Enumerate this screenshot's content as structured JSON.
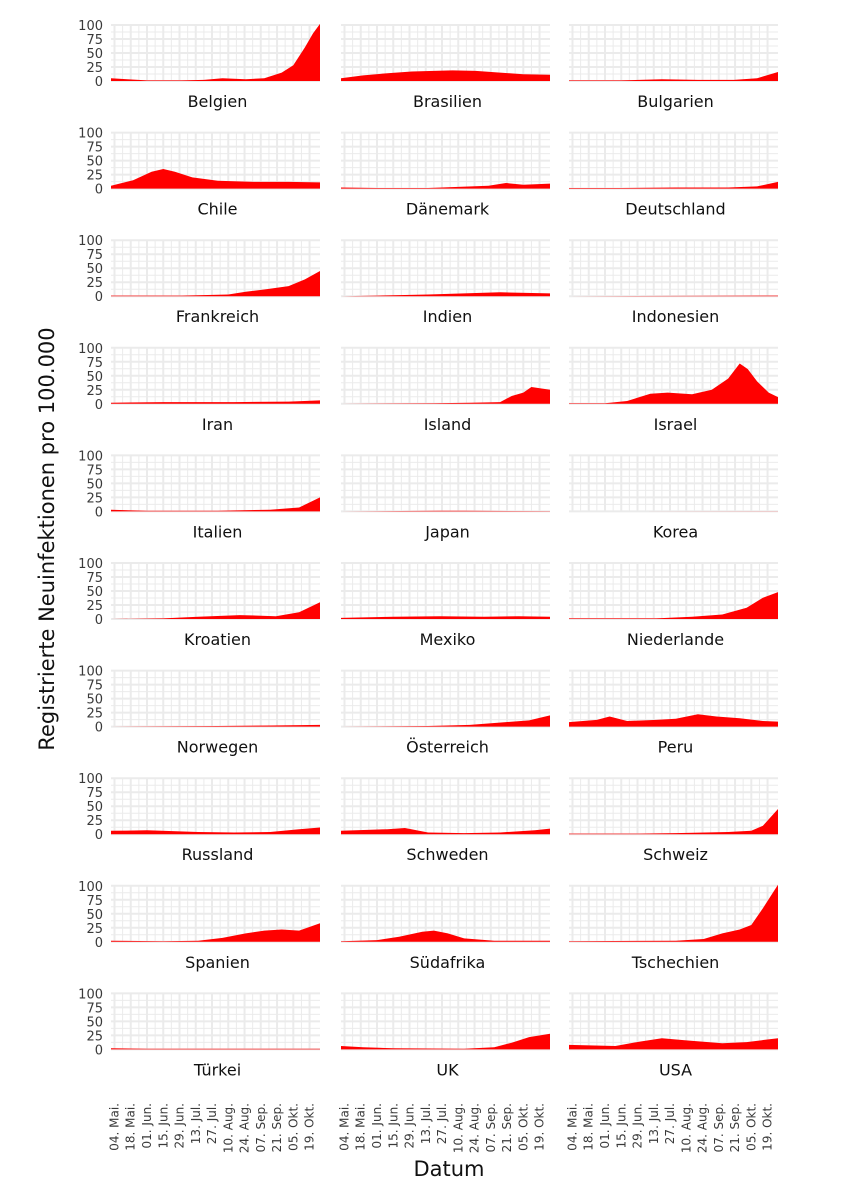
{
  "chart_data": {
    "type": "area",
    "xlabel": "Datum",
    "ylabel": "Registrierte Neuinfektionen pro 100.000",
    "ylim": [
      0,
      100
    ],
    "y_ticks": [
      0,
      25,
      50,
      75,
      100
    ],
    "x_range": [
      "2020-05-01",
      "2020-10-28"
    ],
    "x_ticks": [
      {
        "date": "2020-05-04",
        "label": "04. Mai."
      },
      {
        "date": "2020-05-18",
        "label": "18. Mai."
      },
      {
        "date": "2020-06-01",
        "label": "01. Jun."
      },
      {
        "date": "2020-06-15",
        "label": "15. Jun."
      },
      {
        "date": "2020-06-29",
        "label": "29. Jun."
      },
      {
        "date": "2020-07-13",
        "label": "13. Jul."
      },
      {
        "date": "2020-07-27",
        "label": "27. Jul."
      },
      {
        "date": "2020-08-10",
        "label": "10. Aug."
      },
      {
        "date": "2020-08-24",
        "label": "24. Aug."
      },
      {
        "date": "2020-09-07",
        "label": "07. Sep."
      },
      {
        "date": "2020-09-21",
        "label": "21. Sep."
      },
      {
        "date": "2020-10-05",
        "label": "05. Okt."
      },
      {
        "date": "2020-10-19",
        "label": "19. Okt."
      }
    ],
    "grid": true,
    "fill_color": "#ff0000",
    "grid_color": "#ebebeb",
    "panels": [
      {
        "name": "Belgien",
        "series": [
          [
            "2020-05-01",
            5
          ],
          [
            "2020-05-15",
            3
          ],
          [
            "2020-06-01",
            1
          ],
          [
            "2020-07-01",
            1
          ],
          [
            "2020-07-20",
            2
          ],
          [
            "2020-08-05",
            5
          ],
          [
            "2020-08-25",
            3
          ],
          [
            "2020-09-10",
            5
          ],
          [
            "2020-09-25",
            15
          ],
          [
            "2020-10-05",
            28
          ],
          [
            "2020-10-15",
            60
          ],
          [
            "2020-10-22",
            85
          ],
          [
            "2020-10-28",
            102
          ]
        ]
      },
      {
        "name": "Brasilien",
        "series": [
          [
            "2020-05-01",
            5
          ],
          [
            "2020-05-20",
            10
          ],
          [
            "2020-06-10",
            14
          ],
          [
            "2020-07-01",
            17
          ],
          [
            "2020-07-20",
            18
          ],
          [
            "2020-08-05",
            19
          ],
          [
            "2020-08-25",
            18
          ],
          [
            "2020-09-15",
            15
          ],
          [
            "2020-10-05",
            12
          ],
          [
            "2020-10-28",
            11
          ]
        ]
      },
      {
        "name": "Bulgarien",
        "series": [
          [
            "2020-05-01",
            1
          ],
          [
            "2020-06-15",
            1
          ],
          [
            "2020-07-20",
            3
          ],
          [
            "2020-08-20",
            2
          ],
          [
            "2020-09-20",
            2
          ],
          [
            "2020-10-10",
            5
          ],
          [
            "2020-10-28",
            16
          ]
        ]
      },
      {
        "name": "Chile",
        "series": [
          [
            "2020-05-01",
            5
          ],
          [
            "2020-05-20",
            15
          ],
          [
            "2020-06-05",
            30
          ],
          [
            "2020-06-15",
            35
          ],
          [
            "2020-06-25",
            30
          ],
          [
            "2020-07-10",
            20
          ],
          [
            "2020-08-01",
            14
          ],
          [
            "2020-09-01",
            12
          ],
          [
            "2020-10-01",
            12
          ],
          [
            "2020-10-28",
            11
          ]
        ]
      },
      {
        "name": "Dänemark",
        "series": [
          [
            "2020-05-01",
            2
          ],
          [
            "2020-06-01",
            1
          ],
          [
            "2020-07-15",
            1
          ],
          [
            "2020-08-10",
            3
          ],
          [
            "2020-09-05",
            5
          ],
          [
            "2020-09-20",
            10
          ],
          [
            "2020-10-05",
            7
          ],
          [
            "2020-10-28",
            9
          ]
        ]
      },
      {
        "name": "Deutschland",
        "series": [
          [
            "2020-05-01",
            1
          ],
          [
            "2020-06-15",
            1
          ],
          [
            "2020-08-01",
            2
          ],
          [
            "2020-09-15",
            2
          ],
          [
            "2020-10-10",
            4
          ],
          [
            "2020-10-28",
            12
          ]
        ]
      },
      {
        "name": "Frankreich",
        "series": [
          [
            "2020-05-01",
            1
          ],
          [
            "2020-07-01",
            1
          ],
          [
            "2020-08-10",
            3
          ],
          [
            "2020-08-25",
            8
          ],
          [
            "2020-09-10",
            12
          ],
          [
            "2020-10-01",
            18
          ],
          [
            "2020-10-15",
            30
          ],
          [
            "2020-10-28",
            45
          ]
        ]
      },
      {
        "name": "Indien",
        "series": [
          [
            "2020-05-01",
            0
          ],
          [
            "2020-06-01",
            1
          ],
          [
            "2020-07-15",
            3
          ],
          [
            "2020-09-15",
            7
          ],
          [
            "2020-10-28",
            5
          ]
        ]
      },
      {
        "name": "Indonesien",
        "series": [
          [
            "2020-05-01",
            0
          ],
          [
            "2020-10-28",
            1
          ]
        ]
      },
      {
        "name": "Iran",
        "series": [
          [
            "2020-05-01",
            2
          ],
          [
            "2020-06-15",
            3
          ],
          [
            "2020-08-15",
            3
          ],
          [
            "2020-10-01",
            4
          ],
          [
            "2020-10-28",
            6
          ]
        ]
      },
      {
        "name": "Island",
        "series": [
          [
            "2020-05-01",
            0
          ],
          [
            "2020-07-20",
            1
          ],
          [
            "2020-08-20",
            2
          ],
          [
            "2020-09-15",
            3
          ],
          [
            "2020-09-25",
            14
          ],
          [
            "2020-10-05",
            20
          ],
          [
            "2020-10-12",
            30
          ],
          [
            "2020-10-28",
            25
          ]
        ]
      },
      {
        "name": "Israel",
        "series": [
          [
            "2020-05-01",
            1
          ],
          [
            "2020-06-01",
            1
          ],
          [
            "2020-06-20",
            5
          ],
          [
            "2020-07-10",
            18
          ],
          [
            "2020-07-25",
            20
          ],
          [
            "2020-08-15",
            17
          ],
          [
            "2020-09-01",
            25
          ],
          [
            "2020-09-15",
            45
          ],
          [
            "2020-09-25",
            72
          ],
          [
            "2020-10-02",
            62
          ],
          [
            "2020-10-10",
            40
          ],
          [
            "2020-10-20",
            20
          ],
          [
            "2020-10-28",
            12
          ]
        ]
      },
      {
        "name": "Italien",
        "series": [
          [
            "2020-05-01",
            3
          ],
          [
            "2020-06-01",
            1
          ],
          [
            "2020-08-01",
            1
          ],
          [
            "2020-09-15",
            3
          ],
          [
            "2020-10-10",
            7
          ],
          [
            "2020-10-28",
            25
          ]
        ]
      },
      {
        "name": "Japan",
        "series": [
          [
            "2020-05-01",
            0
          ],
          [
            "2020-07-25",
            1
          ],
          [
            "2020-08-15",
            1
          ],
          [
            "2020-10-28",
            0.5
          ]
        ]
      },
      {
        "name": "Korea",
        "series": [
          [
            "2020-05-01",
            0
          ],
          [
            "2020-10-28",
            0.3
          ]
        ]
      },
      {
        "name": "Kroatien",
        "series": [
          [
            "2020-05-01",
            0
          ],
          [
            "2020-06-15",
            1
          ],
          [
            "2020-07-15",
            4
          ],
          [
            "2020-08-20",
            7
          ],
          [
            "2020-09-20",
            5
          ],
          [
            "2020-10-10",
            12
          ],
          [
            "2020-10-28",
            30
          ]
        ]
      },
      {
        "name": "Mexiko",
        "series": [
          [
            "2020-05-01",
            2
          ],
          [
            "2020-06-15",
            4
          ],
          [
            "2020-07-25",
            5
          ],
          [
            "2020-09-01",
            4
          ],
          [
            "2020-10-01",
            5
          ],
          [
            "2020-10-28",
            4
          ]
        ]
      },
      {
        "name": "Niederlande",
        "series": [
          [
            "2020-05-01",
            1
          ],
          [
            "2020-07-15",
            1
          ],
          [
            "2020-08-15",
            4
          ],
          [
            "2020-09-10",
            8
          ],
          [
            "2020-10-01",
            20
          ],
          [
            "2020-10-15",
            38
          ],
          [
            "2020-10-28",
            48
          ]
        ]
      },
      {
        "name": "Norwegen",
        "series": [
          [
            "2020-05-01",
            0
          ],
          [
            "2020-08-01",
            1
          ],
          [
            "2020-09-15",
            2
          ],
          [
            "2020-10-28",
            3
          ]
        ]
      },
      {
        "name": "Österreich",
        "series": [
          [
            "2020-05-01",
            0
          ],
          [
            "2020-07-15",
            1
          ],
          [
            "2020-08-20",
            3
          ],
          [
            "2020-09-20",
            8
          ],
          [
            "2020-10-10",
            11
          ],
          [
            "2020-10-28",
            20
          ]
        ]
      },
      {
        "name": "Peru",
        "series": [
          [
            "2020-05-01",
            8
          ],
          [
            "2020-05-25",
            12
          ],
          [
            "2020-06-05",
            18
          ],
          [
            "2020-06-20",
            10
          ],
          [
            "2020-07-15",
            12
          ],
          [
            "2020-08-01",
            14
          ],
          [
            "2020-08-20",
            22
          ],
          [
            "2020-09-05",
            18
          ],
          [
            "2020-09-25",
            15
          ],
          [
            "2020-10-15",
            10
          ],
          [
            "2020-10-28",
            9
          ]
        ]
      },
      {
        "name": "Russland",
        "series": [
          [
            "2020-05-01",
            6
          ],
          [
            "2020-06-01",
            7
          ],
          [
            "2020-07-15",
            4
          ],
          [
            "2020-08-15",
            3
          ],
          [
            "2020-09-15",
            4
          ],
          [
            "2020-10-10",
            9
          ],
          [
            "2020-10-28",
            12
          ]
        ]
      },
      {
        "name": "Schweden",
        "series": [
          [
            "2020-05-01",
            6
          ],
          [
            "2020-06-10",
            9
          ],
          [
            "2020-06-25",
            11
          ],
          [
            "2020-07-15",
            3
          ],
          [
            "2020-08-15",
            2
          ],
          [
            "2020-09-15",
            3
          ],
          [
            "2020-10-15",
            7
          ],
          [
            "2020-10-28",
            10
          ]
        ]
      },
      {
        "name": "Schweiz",
        "series": [
          [
            "2020-05-01",
            1
          ],
          [
            "2020-07-01",
            1
          ],
          [
            "2020-08-01",
            2
          ],
          [
            "2020-09-15",
            4
          ],
          [
            "2020-10-05",
            6
          ],
          [
            "2020-10-15",
            15
          ],
          [
            "2020-10-28",
            45
          ]
        ]
      },
      {
        "name": "Spanien",
        "series": [
          [
            "2020-05-01",
            2
          ],
          [
            "2020-06-15",
            1
          ],
          [
            "2020-07-15",
            2
          ],
          [
            "2020-08-05",
            7
          ],
          [
            "2020-08-25",
            15
          ],
          [
            "2020-09-10",
            20
          ],
          [
            "2020-09-25",
            22
          ],
          [
            "2020-10-10",
            20
          ],
          [
            "2020-10-28",
            33
          ]
        ]
      },
      {
        "name": "Südafrika",
        "series": [
          [
            "2020-05-01",
            1
          ],
          [
            "2020-06-01",
            3
          ],
          [
            "2020-06-20",
            9
          ],
          [
            "2020-07-10",
            18
          ],
          [
            "2020-07-20",
            20
          ],
          [
            "2020-08-01",
            15
          ],
          [
            "2020-08-15",
            6
          ],
          [
            "2020-09-10",
            2
          ],
          [
            "2020-10-28",
            2
          ]
        ]
      },
      {
        "name": "Tschechien",
        "series": [
          [
            "2020-05-01",
            1
          ],
          [
            "2020-08-01",
            2
          ],
          [
            "2020-08-25",
            5
          ],
          [
            "2020-09-10",
            15
          ],
          [
            "2020-09-25",
            22
          ],
          [
            "2020-10-05",
            30
          ],
          [
            "2020-10-15",
            60
          ],
          [
            "2020-10-28",
            102
          ]
        ]
      },
      {
        "name": "Türkei",
        "series": [
          [
            "2020-05-01",
            2
          ],
          [
            "2020-06-01",
            1
          ],
          [
            "2020-10-28",
            1
          ]
        ]
      },
      {
        "name": "UK",
        "series": [
          [
            "2020-05-01",
            6
          ],
          [
            "2020-05-20",
            4
          ],
          [
            "2020-06-15",
            2
          ],
          [
            "2020-08-15",
            1
          ],
          [
            "2020-09-10",
            4
          ],
          [
            "2020-09-25",
            12
          ],
          [
            "2020-10-10",
            22
          ],
          [
            "2020-10-28",
            28
          ]
        ]
      },
      {
        "name": "USA",
        "series": [
          [
            "2020-05-01",
            8
          ],
          [
            "2020-06-10",
            6
          ],
          [
            "2020-07-01",
            14
          ],
          [
            "2020-07-20",
            20
          ],
          [
            "2020-08-10",
            16
          ],
          [
            "2020-09-10",
            11
          ],
          [
            "2020-10-01",
            13
          ],
          [
            "2020-10-28",
            20
          ]
        ]
      }
    ]
  }
}
